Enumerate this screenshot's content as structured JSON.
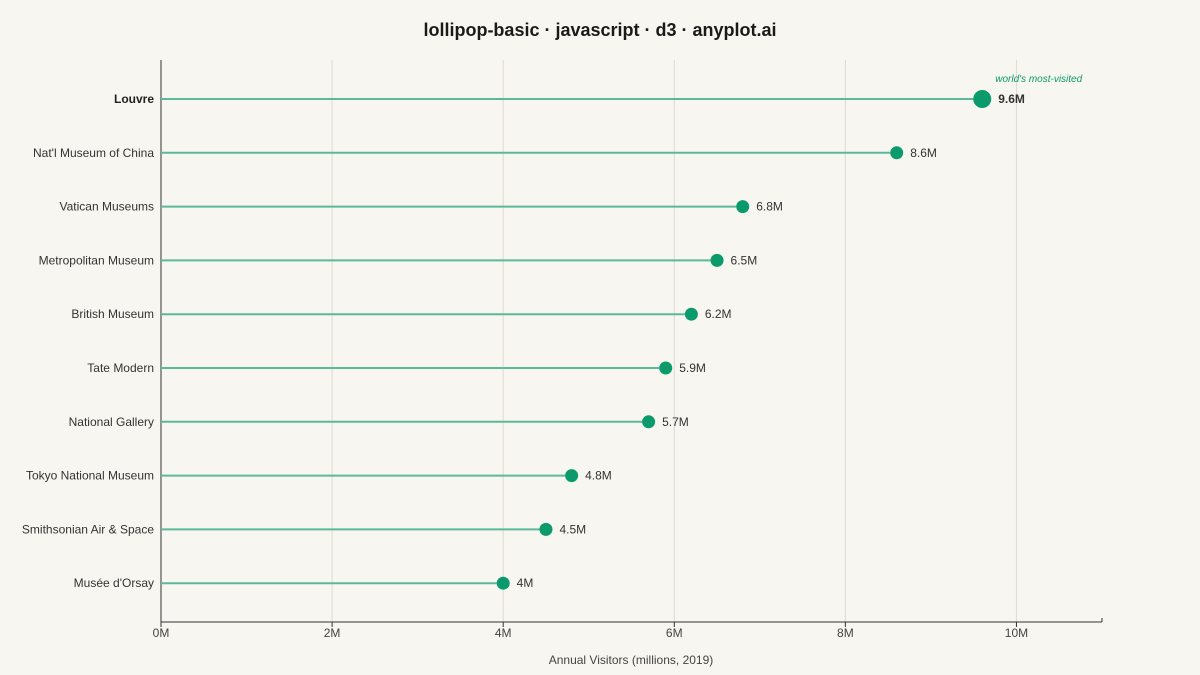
{
  "chart_data": {
    "type": "lollipop",
    "title": "lollipop-basic · javascript · d3 · anyplot.ai",
    "xlabel": "Annual Visitors (millions, 2019)",
    "ylabel": "",
    "xlim": [
      0,
      11
    ],
    "x_ticks": [
      0,
      2,
      4,
      6,
      8,
      10
    ],
    "x_tick_labels": [
      "0M",
      "2M",
      "4M",
      "6M",
      "8M",
      "10M"
    ],
    "grid": true,
    "categories": [
      "Louvre",
      "Nat'l Museum of China",
      "Vatican Museums",
      "Metropolitan Museum",
      "British Museum",
      "Tate Modern",
      "National Gallery",
      "Tokyo National Museum",
      "Smithsonian Air & Space",
      "Musée d'Orsay"
    ],
    "values": [
      9.6,
      8.6,
      6.8,
      6.5,
      6.2,
      5.9,
      5.7,
      4.8,
      4.5,
      4.0
    ],
    "value_labels": [
      "9.6M",
      "8.6M",
      "6.8M",
      "6.5M",
      "6.2M",
      "5.9M",
      "5.7M",
      "4.8M",
      "4.5M",
      "4M"
    ],
    "highlight_category": "Louvre",
    "annotation": "world's most-visited",
    "colors": {
      "marker": "#0a9a6c",
      "stem": "#5cb89a",
      "annotation": "#0a9a6c",
      "background": "#f8f6f0"
    }
  }
}
